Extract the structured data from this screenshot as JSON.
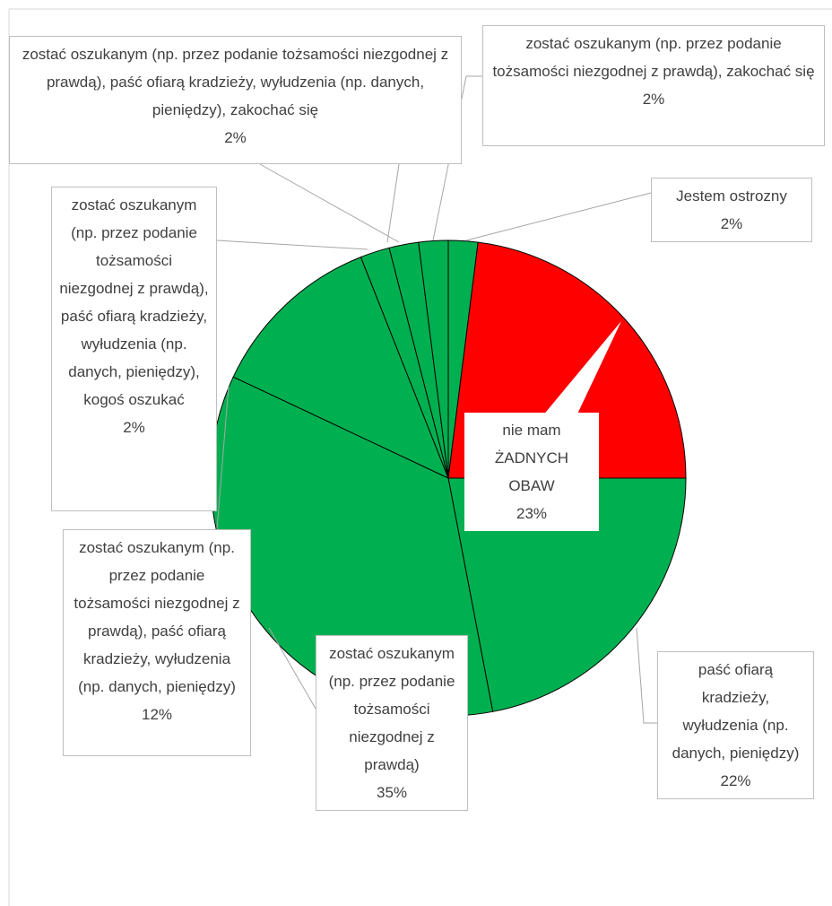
{
  "chart_data": {
    "type": "pie",
    "categories": [
      "Jestem ostrozny",
      "nie mam ŻADNYCH OBAW",
      "paść ofiarą kradzieży, wyłudzenia (np. danych, pieniędzy)",
      "zostać oszukanym (np. przez podanie tożsamości niezgodnej z prawdą)",
      "zostać oszukanym (np. przez podanie tożsamości niezgodnej z prawdą), paść ofiarą kradzieży, wyłudzenia (np. danych, pieniędzy)",
      "zostać oszukanym (np. przez podanie tożsamości niezgodnej z prawdą), paść ofiarą kradzieży, wyłudzenia (np. danych, pieniędzy), kogoś oszukać",
      "zostać oszukanym (np. przez podanie tożsamości niezgodnej z prawdą), paść ofiarą kradzieży, wyłudzenia (np. danych, pieniędzy), zakochać się",
      "zostać oszukanym (np. przez podanie tożsamości niezgodnej z prawdą), zakochać się"
    ],
    "values": [
      2,
      23,
      22,
      35,
      12,
      2,
      2,
      2
    ],
    "value_labels": [
      "2%",
      "23%",
      "22%",
      "35%",
      "12%",
      "2%",
      "2%",
      "2%"
    ],
    "colors": [
      "#00b050",
      "#ff0000",
      "#00b050",
      "#00b050",
      "#00b050",
      "#00b050",
      "#00b050",
      "#00b050"
    ]
  }
}
